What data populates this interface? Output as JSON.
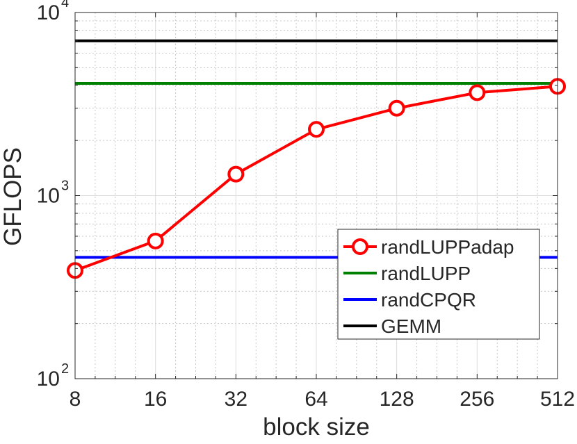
{
  "chart_data": {
    "type": "line",
    "xscale": "log2",
    "yscale": "log10",
    "xlabel": "block size",
    "ylabel": "GFLOPS",
    "xlim": [
      8,
      512
    ],
    "ylim": [
      100,
      10000
    ],
    "xticks": [
      "8",
      "16",
      "32",
      "64",
      "128",
      "256",
      "512"
    ],
    "yticks": [
      {
        "base": "10",
        "exp": "2"
      },
      {
        "base": "10",
        "exp": "3"
      },
      {
        "base": "10",
        "exp": "4"
      }
    ],
    "grid": true,
    "legend_position": "bottom-right",
    "series": [
      {
        "name": "randLUPPadap",
        "color": "#ff0000",
        "marker": "circle",
        "x": [
          8,
          16,
          32,
          64,
          128,
          256,
          512
        ],
        "y": [
          390,
          565,
          1310,
          2300,
          3000,
          3650,
          3950
        ]
      },
      {
        "name": "randLUPP",
        "color": "#008000",
        "marker": "none",
        "x": [
          8,
          512
        ],
        "y": [
          4100,
          4100
        ]
      },
      {
        "name": "randCPQR",
        "color": "#0000ff",
        "marker": "none",
        "x": [
          8,
          512
        ],
        "y": [
          460,
          460
        ]
      },
      {
        "name": "GEMM",
        "color": "#000000",
        "marker": "none",
        "x": [
          8,
          512
        ],
        "y": [
          7000,
          7000
        ]
      }
    ]
  }
}
